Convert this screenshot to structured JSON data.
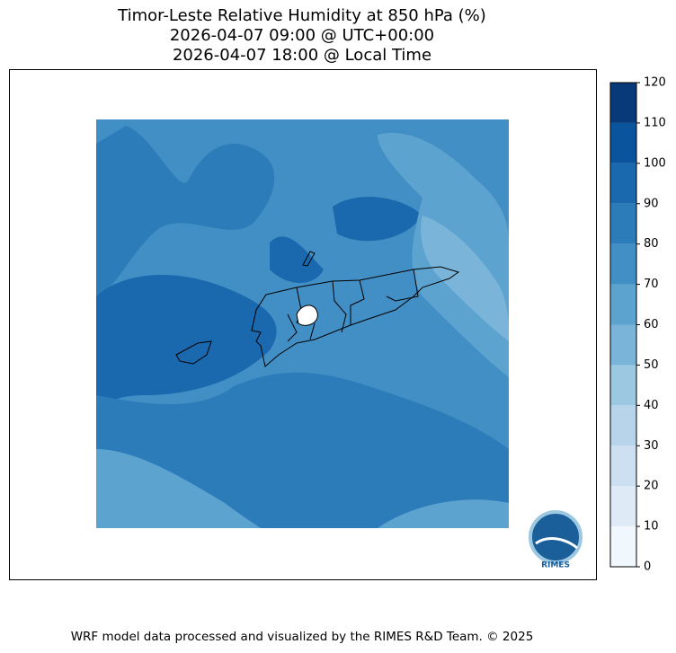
{
  "title": [
    "Timor-Leste Relative Humidity at 850 hPa (%)",
    "2026-04-07 09:00 @ UTC+00:00",
    "2026-04-07 18:00 @ Local Time"
  ],
  "colorbar": {
    "ticks": [
      0,
      10,
      20,
      30,
      40,
      50,
      60,
      70,
      80,
      90,
      100,
      110,
      120
    ],
    "colors": [
      "#f0f7fd",
      "#deebf7",
      "#cde0f1",
      "#b7d4ea",
      "#9cc8e2",
      "#7ab5d9",
      "#5da3d0",
      "#428fc5",
      "#2d7cba",
      "#1a68ae",
      "#0a549e",
      "#083a7a"
    ]
  },
  "logo": "RIMES",
  "footer": "WRF model data processed and visualized by the RIMES R&D Team. © 2025"
}
